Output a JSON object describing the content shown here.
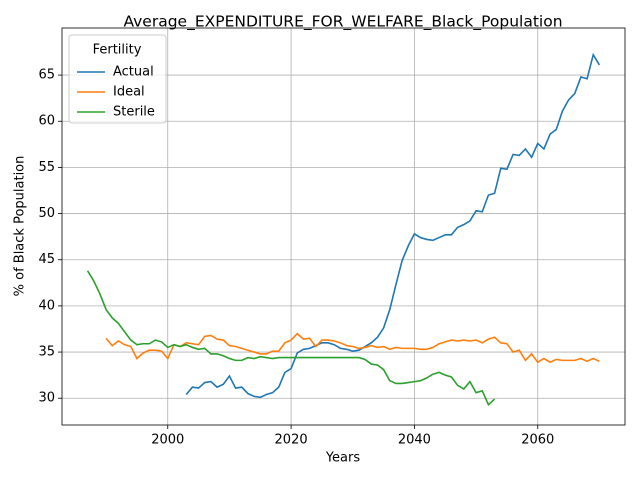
{
  "chart_data": {
    "type": "line",
    "title": "Average_EXPENDITURE_FOR_WELFARE_Black_Population",
    "x_label": "Years",
    "y_label": "% of Black Population",
    "legend_title": "Fertility",
    "legend": "upper left",
    "grid": true,
    "xlim": [
      1982.85,
      2074.15
    ],
    "xticks": [
      2000,
      2020,
      2040,
      2060
    ],
    "ylim": [
      27.1,
      70.1
    ],
    "yticks": [
      30,
      35,
      40,
      45,
      50,
      55,
      60,
      65
    ],
    "x": [
      1987,
      1988,
      1989,
      1990,
      1991,
      1992,
      1993,
      1994,
      1995,
      1996,
      1997,
      1998,
      1999,
      2000,
      2001,
      2002,
      2003,
      2004,
      2005,
      2006,
      2007,
      2008,
      2009,
      2010,
      2011,
      2012,
      2013,
      2014,
      2015,
      2016,
      2017,
      2018,
      2019,
      2020,
      2021,
      2022,
      2023,
      2024,
      2025,
      2026,
      2027,
      2028,
      2029,
      2030,
      2031,
      2032,
      2033,
      2034,
      2035,
      2036,
      2037,
      2038,
      2039,
      2040,
      2041,
      2042,
      2043,
      2044,
      2045,
      2046,
      2047,
      2048,
      2049,
      2050,
      2051,
      2052,
      2053,
      2054,
      2055,
      2056,
      2057,
      2058,
      2059,
      2060,
      2061,
      2062,
      2063,
      2064,
      2065,
      2066,
      2067,
      2068,
      2069,
      2070
    ],
    "series": [
      {
        "name": "Actual",
        "color": "#1f77b4",
        "values": [
          null,
          null,
          null,
          null,
          null,
          null,
          null,
          null,
          null,
          null,
          null,
          null,
          null,
          null,
          null,
          null,
          30.4,
          31.2,
          31.1,
          31.7,
          31.8,
          31.2,
          31.5,
          32.4,
          31.1,
          31.2,
          30.5,
          30.2,
          30.1,
          30.4,
          30.6,
          31.2,
          32.8,
          33.2,
          34.9,
          35.3,
          35.4,
          35.7,
          36.0,
          36.0,
          35.8,
          35.4,
          35.3,
          35.1,
          35.2,
          35.6,
          36.0,
          36.6,
          37.6,
          39.6,
          42.3,
          44.9,
          46.5,
          47.8,
          47.4,
          47.2,
          47.1,
          47.4,
          47.7,
          47.7,
          48.5,
          48.8,
          49.2,
          50.3,
          50.2,
          52.0,
          52.2,
          54.9,
          54.8,
          56.4,
          56.3,
          57.0,
          56.1,
          57.6,
          57.0,
          58.6,
          59.1,
          61.1,
          62.3,
          63.0,
          64.8,
          64.6,
          67.2,
          66.1
        ]
      },
      {
        "name": "Ideal",
        "color": "#ff7f0e",
        "values": [
          null,
          null,
          null,
          36.5,
          35.7,
          36.2,
          35.8,
          35.6,
          34.3,
          34.9,
          35.2,
          35.2,
          35.1,
          34.3,
          35.8,
          35.6,
          36.0,
          35.9,
          35.8,
          36.7,
          36.8,
          36.4,
          36.3,
          35.7,
          35.6,
          35.4,
          35.2,
          35.0,
          34.8,
          34.8,
          35.1,
          35.1,
          36.0,
          36.3,
          37.0,
          36.4,
          36.5,
          35.6,
          36.3,
          36.3,
          36.2,
          36.0,
          35.7,
          35.6,
          35.4,
          35.5,
          35.7,
          35.5,
          35.6,
          35.3,
          35.5,
          35.4,
          35.4,
          35.4,
          35.3,
          35.3,
          35.5,
          35.9,
          36.1,
          36.3,
          36.2,
          36.3,
          36.2,
          36.3,
          36.0,
          36.4,
          36.6,
          36.0,
          35.9,
          35.0,
          35.2,
          34.1,
          34.8,
          33.9,
          34.3,
          33.9,
          34.2,
          34.1,
          34.1,
          34.1,
          34.3,
          34.0,
          34.3,
          34.0
        ]
      },
      {
        "name": "Sterile",
        "color": "#2ca02c",
        "values": [
          43.8,
          42.7,
          41.3,
          39.6,
          38.7,
          38.1,
          37.2,
          36.3,
          35.8,
          35.9,
          35.9,
          36.3,
          36.1,
          35.5,
          35.8,
          35.6,
          35.8,
          35.5,
          35.3,
          35.4,
          34.8,
          34.8,
          34.6,
          34.3,
          34.1,
          34.1,
          34.4,
          34.3,
          34.5,
          34.4,
          34.3,
          34.4,
          34.4,
          34.4,
          34.4,
          34.4,
          34.4,
          34.4,
          34.4,
          34.4,
          34.4,
          34.4,
          34.4,
          34.4,
          34.4,
          34.2,
          33.7,
          33.6,
          33.1,
          31.9,
          31.6,
          31.6,
          31.7,
          31.8,
          31.9,
          32.2,
          32.6,
          32.8,
          32.5,
          32.3,
          31.4,
          31.0,
          31.8,
          30.6,
          30.8,
          29.3,
          29.9,
          null,
          null,
          null,
          null,
          null,
          null,
          null,
          null,
          null,
          null,
          null,
          null,
          null,
          null,
          null,
          null,
          null
        ]
      }
    ]
  }
}
